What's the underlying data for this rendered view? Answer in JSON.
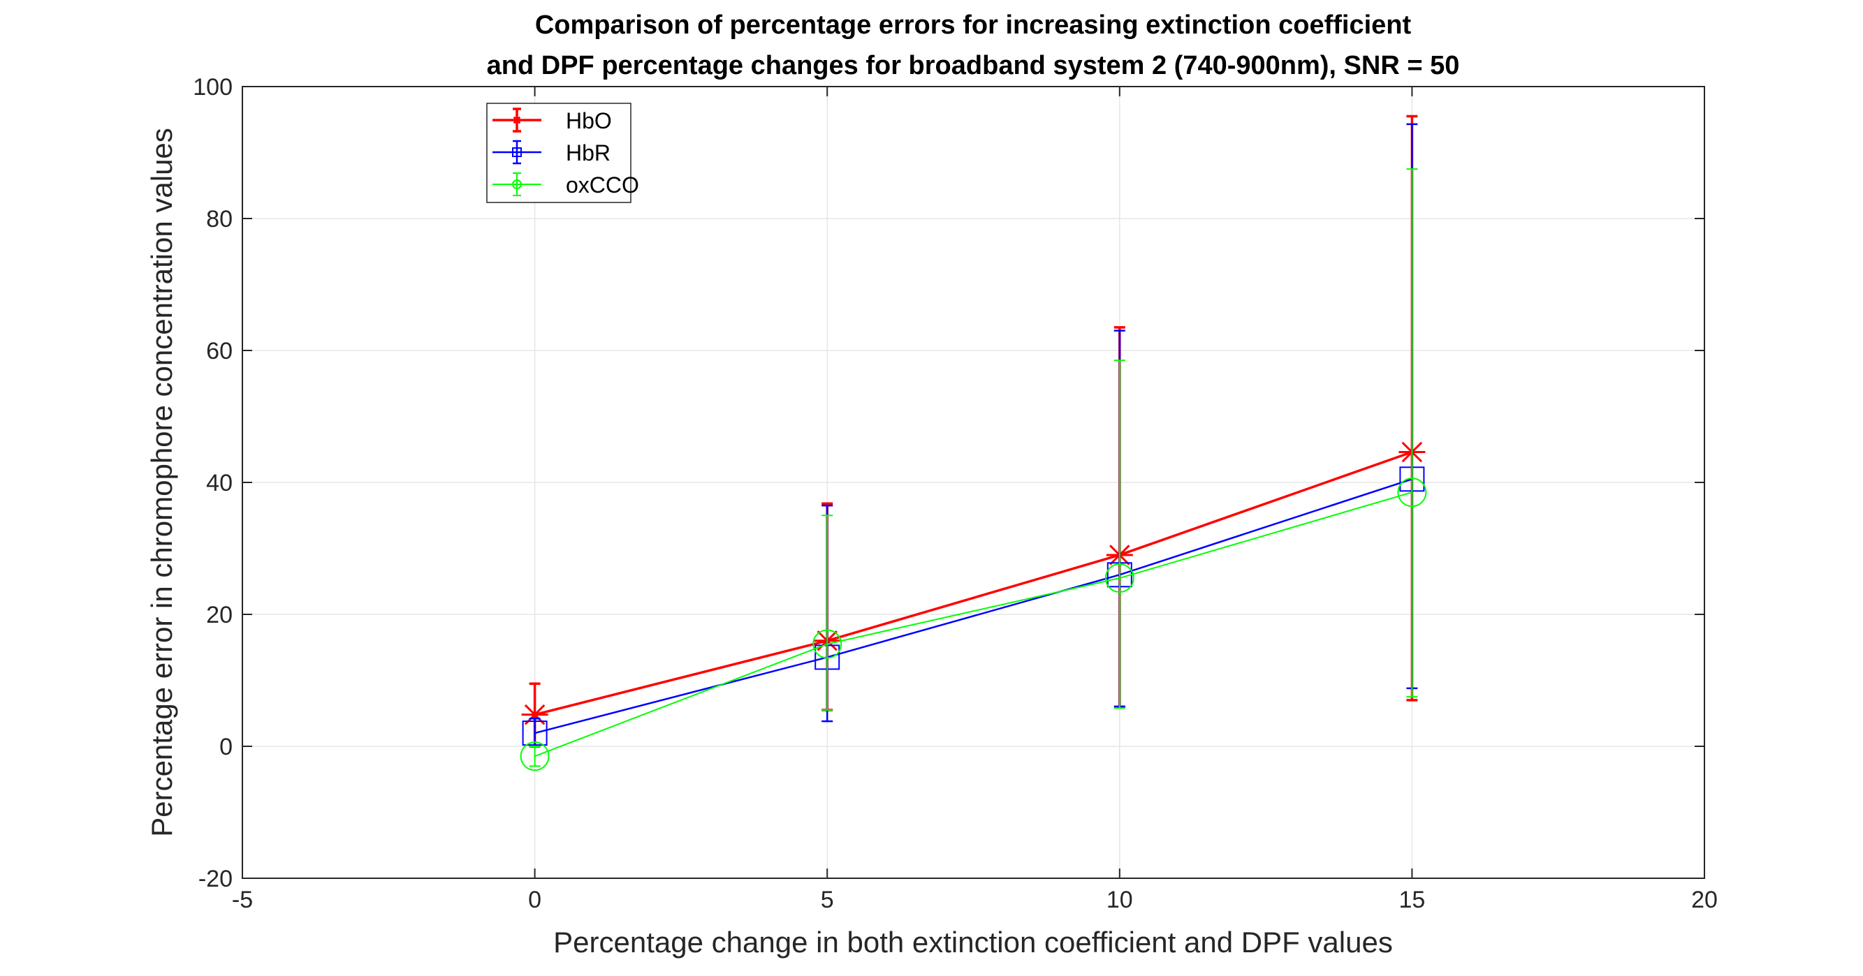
{
  "chart_data": {
    "type": "line",
    "title_lines": [
      "Comparison of percentage errors for increasing extinction coefficient",
      "and DPF percentage changes for broadband system 2 (740-900nm), SNR = 50"
    ],
    "xlabel": "Percentage change in both extinction coefficient and DPF values",
    "ylabel": "Percentage error in chromophore concentration values",
    "xlim": [
      -5,
      20
    ],
    "ylim": [
      -20,
      100
    ],
    "x_ticks": [
      "-5",
      "0",
      "5",
      "10",
      "15",
      "20"
    ],
    "y_ticks": [
      "-20",
      "0",
      "20",
      "40",
      "60",
      "80",
      "100"
    ],
    "grid": true,
    "legend_position": "top-left",
    "x": [
      0,
      5,
      10,
      15
    ],
    "series": [
      {
        "name": "HbO",
        "color": "#ff0000",
        "marker": "asterisk",
        "values": [
          4.8,
          16.0,
          29.0,
          44.6
        ],
        "error_low": [
          0.0,
          5.5,
          6.0,
          7.0
        ],
        "error_high": [
          9.5,
          36.8,
          63.5,
          95.5
        ]
      },
      {
        "name": "HbR",
        "color": "#0000ff",
        "marker": "square",
        "values": [
          2.0,
          13.5,
          26.0,
          40.5
        ],
        "error_low": [
          0.0,
          3.8,
          6.0,
          8.8
        ],
        "error_high": [
          4.2,
          36.5,
          63.0,
          94.3
        ]
      },
      {
        "name": "oxCCO",
        "color": "#00ff00",
        "marker": "circle",
        "values": [
          -1.5,
          15.5,
          25.5,
          38.5
        ],
        "error_low": [
          -3.0,
          5.5,
          5.8,
          7.5
        ],
        "error_high": [
          0.0,
          35.0,
          58.5,
          87.5
        ]
      }
    ]
  }
}
